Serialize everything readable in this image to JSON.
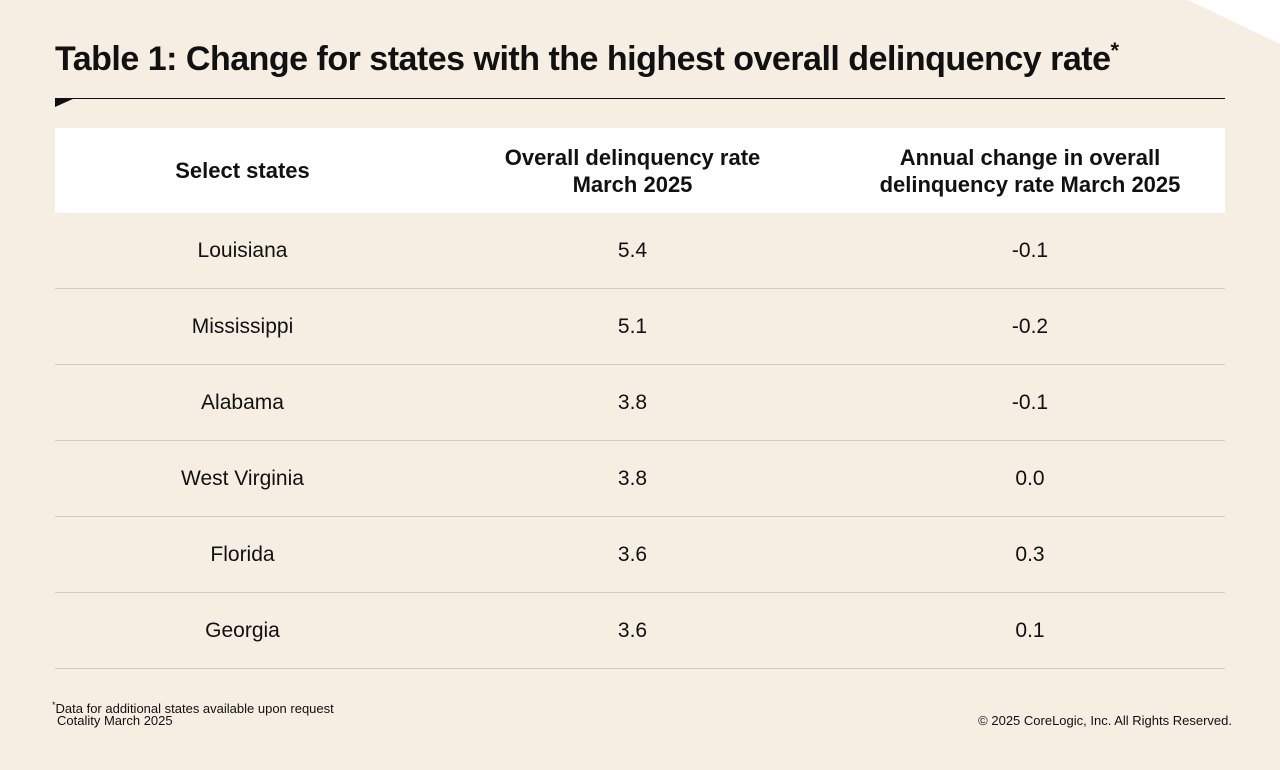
{
  "title": "Table 1: Change for states with the highest overall delinquency rate",
  "title_mark": "*",
  "chart_data": {
    "type": "table",
    "columns": [
      "Select states",
      "Overall delinquency rate March 2025",
      "Annual change in overall delinquency rate March 2025"
    ],
    "rows": [
      [
        "Louisiana",
        "5.4",
        "-0.1"
      ],
      [
        "Mississippi",
        "5.1",
        "-0.2"
      ],
      [
        "Alabama",
        "3.8",
        "-0.1"
      ],
      [
        "West Virginia",
        "3.8",
        "0.0"
      ],
      [
        "Florida",
        "3.6",
        "0.3"
      ],
      [
        "Georgia",
        "3.6",
        "0.1"
      ]
    ]
  },
  "header_lines": [
    [
      "Select states"
    ],
    [
      "Overall delinquency rate",
      "March 2025"
    ],
    [
      "Annual change in overall",
      "delinquency rate March 2025"
    ]
  ],
  "footnote": {
    "mark": "*",
    "text": "Data for additional states available upon request"
  },
  "source": "Cotality March 2025",
  "copyright": "© 2025 CoreLogic, Inc. All Rights Reserved.",
  "colors": {
    "background": "#f6eee2",
    "header_background": "#ffffff",
    "row_divider": "#d3cbbf",
    "text": "#111111"
  }
}
